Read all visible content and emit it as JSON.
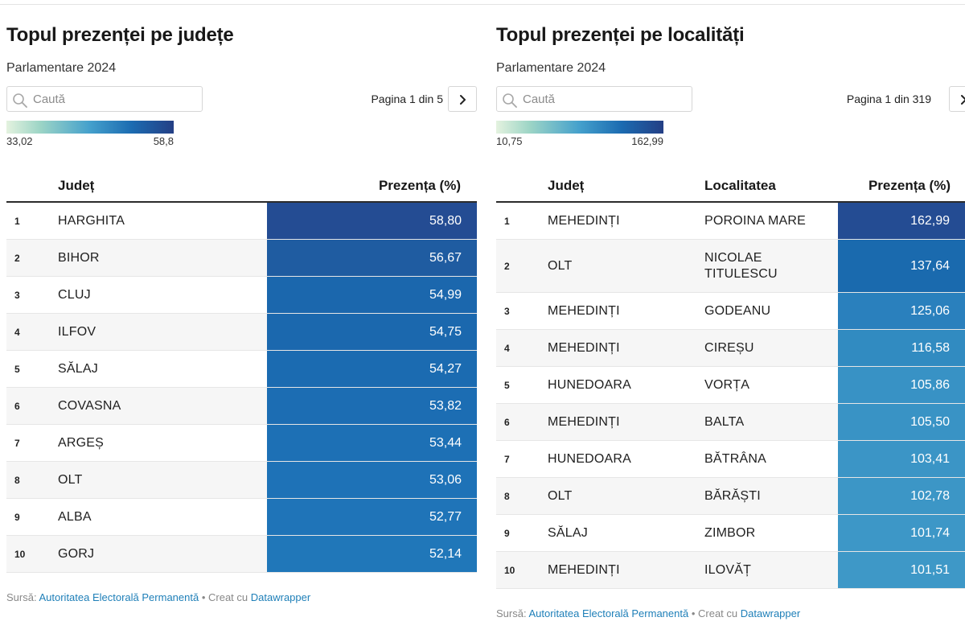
{
  "left": {
    "title": "Topul prezenței pe județe",
    "subtitle": "Parlamentare 2024",
    "search_placeholder": "Caută",
    "pagination": "Pagina 1 din 5",
    "legend": {
      "min": "33,02",
      "max": "58,8"
    },
    "columns": {
      "rank": "",
      "county": "Județ",
      "turnout": "Prezența (%)"
    },
    "rows": [
      {
        "rank": "1",
        "county": "HARGHITA",
        "turnout": "58,80",
        "color": "#244c93"
      },
      {
        "rank": "2",
        "county": "BIHOR",
        "turnout": "56,67",
        "color": "#1f5ca1"
      },
      {
        "rank": "3",
        "county": "CLUJ",
        "turnout": "54,99",
        "color": "#1b67ad"
      },
      {
        "rank": "4",
        "county": "ILFOV",
        "turnout": "54,75",
        "color": "#1b68ae"
      },
      {
        "rank": "5",
        "county": "SĂLAJ",
        "turnout": "54,27",
        "color": "#1b6bb1"
      },
      {
        "rank": "6",
        "county": "COVASNA",
        "turnout": "53,82",
        "color": "#1c6db3"
      },
      {
        "rank": "7",
        "county": "ARGEȘ",
        "turnout": "53,44",
        "color": "#1d70b5"
      },
      {
        "rank": "8",
        "county": "OLT",
        "turnout": "53,06",
        "color": "#1e72b7"
      },
      {
        "rank": "9",
        "county": "ALBA",
        "turnout": "52,77",
        "color": "#1f74b8"
      },
      {
        "rank": "10",
        "county": "GORJ",
        "turnout": "52,14",
        "color": "#2077b9"
      }
    ],
    "source": {
      "label": "Sursă:",
      "source_link": "Autoritatea Electorală Permanentă",
      "sep": "• Creat cu",
      "tool_link": "Datawrapper"
    }
  },
  "right": {
    "title": "Topul prezenței pe localități",
    "subtitle": "Parlamentare 2024",
    "search_placeholder": "Caută",
    "pagination": "Pagina 1 din 319",
    "legend": {
      "min": "10,75",
      "max": "162,99"
    },
    "columns": {
      "rank": "",
      "county": "Județ",
      "locality": "Localitatea",
      "turnout": "Prezența (%)"
    },
    "rows": [
      {
        "rank": "1",
        "county": "MEHEDINȚI",
        "locality": "POROINA MARE",
        "turnout": "162,99",
        "color": "#244c93"
      },
      {
        "rank": "2",
        "county": "OLT",
        "locality": "NICOLAE TITULESCU",
        "turnout": "137,64",
        "color": "#1a6aae"
      },
      {
        "rank": "3",
        "county": "MEHEDINȚI",
        "locality": "GODEANU",
        "turnout": "125,06",
        "color": "#2a80bd"
      },
      {
        "rank": "4",
        "county": "MEHEDINȚI",
        "locality": "CIREȘU",
        "turnout": "116,58",
        "color": "#318bc1"
      },
      {
        "rank": "5",
        "county": "HUNEDOARA",
        "locality": "VORȚA",
        "turnout": "105,86",
        "color": "#3892c5"
      },
      {
        "rank": "6",
        "county": "MEHEDINȚI",
        "locality": "BALTA",
        "turnout": "105,50",
        "color": "#3993c5"
      },
      {
        "rank": "7",
        "county": "HUNEDOARA",
        "locality": "BĂTRÂNA",
        "turnout": "103,41",
        "color": "#3b95c6"
      },
      {
        "rank": "8",
        "county": "OLT",
        "locality": "BĂRĂȘTI",
        "turnout": "102,78",
        "color": "#3c96c6"
      },
      {
        "rank": "9",
        "county": "SĂLAJ",
        "locality": "ZIMBOR",
        "turnout": "101,74",
        "color": "#3d97c7"
      },
      {
        "rank": "10",
        "county": "MEHEDINȚI",
        "locality": "ILOVĂȚ",
        "turnout": "101,51",
        "color": "#3e98c7"
      }
    ],
    "source": {
      "label": "Sursă:",
      "source_link": "Autoritatea Electorală Permanentă",
      "sep": "• Creat cu",
      "tool_link": "Datawrapper"
    }
  }
}
